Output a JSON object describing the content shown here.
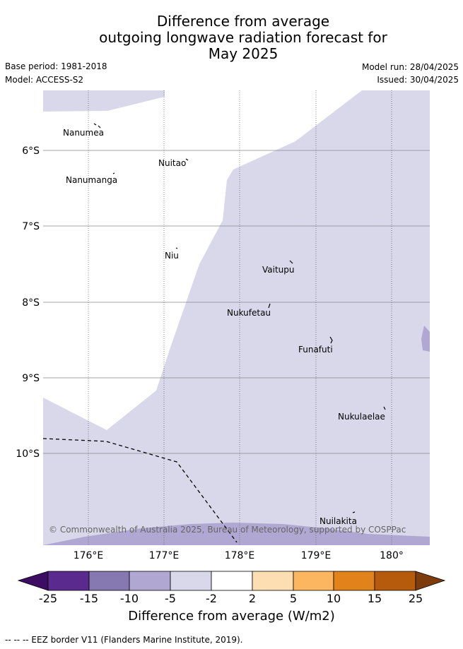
{
  "title": {
    "line1": "Difference from average",
    "line2": "outgoing longwave radiation forecast for",
    "line3": "May 2025"
  },
  "meta": {
    "base_period": "Base period: 1981-2018",
    "model": "Model: ACCESS-S2",
    "model_run": "Model run: 28/04/2025",
    "issued": "Issued: 30/04/2025"
  },
  "map": {
    "latitude_ticks": [
      "6°S",
      "7°S",
      "8°S",
      "9°S",
      "10°S"
    ],
    "longitude_ticks": [
      "176°E",
      "177°E",
      "178°E",
      "179°E",
      "180°"
    ],
    "places": [
      {
        "name": "Nanumea",
        "lon": 176.17,
        "lat": -5.68
      },
      {
        "name": "Nuitao",
        "lon": 177.32,
        "lat": -6.12
      },
      {
        "name": "Nanumanga",
        "lon": 176.32,
        "lat": -6.29
      },
      {
        "name": "Niu",
        "lon": 177.17,
        "lat": -7.3
      },
      {
        "name": "Vaitupu",
        "lon": 178.68,
        "lat": -7.48
      },
      {
        "name": "Nukufetau",
        "lon": 178.38,
        "lat": -8.02
      },
      {
        "name": "Funafuti",
        "lon": 179.2,
        "lat": -8.52
      },
      {
        "name": "Nukulaelae",
        "lon": 179.85,
        "lat": -9.38
      },
      {
        "name": "Nuilakita",
        "lon": 179.5,
        "lat": -10.8
      }
    ],
    "copyright": "© Commonwealth of Australia 2025, Bureau of Meteorology, supported by COSPPac",
    "colors": {
      "light": "#d8d8ea",
      "medium": "#b0a8d2",
      "ocean_white": "#ffffff"
    }
  },
  "colorbar": {
    "title": "Difference from average (W/m2)",
    "labels": [
      "-25",
      "-15",
      "-10",
      "-5",
      "-2",
      "2",
      "5",
      "10",
      "15",
      "25"
    ],
    "colors": [
      "#3d0c63",
      "#5b2a8f",
      "#8678b0",
      "#b0a8d2",
      "#d8d8ea",
      "#ffffff",
      "#fddeb2",
      "#fcb660",
      "#e2821b",
      "#b65b0b",
      "#7e3c0c"
    ]
  },
  "footer": {
    "legend": "-- -- -- EEZ border V11 (Flanders Marine Institute, 2019)."
  }
}
